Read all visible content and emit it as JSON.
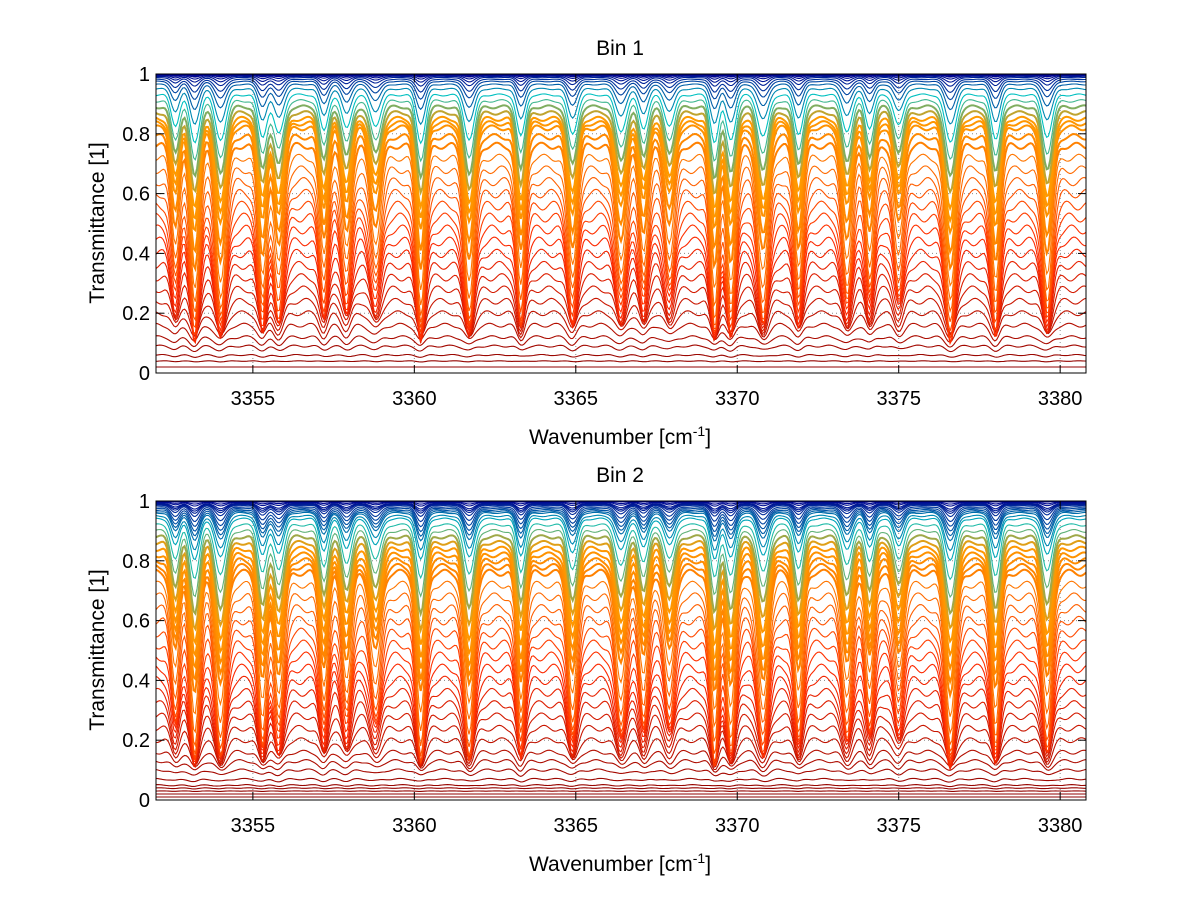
{
  "chart_data": [
    {
      "type": "line",
      "title": "Bin 1",
      "xlabel": "Wavenumber [cm",
      "xlabel_sup": "-1",
      "xlabel_end": "]",
      "ylabel": "Transmittance [1]",
      "xlim": [
        3352.0,
        3380.8
      ],
      "ylim": [
        0,
        1
      ],
      "xticks": [
        3355,
        3360,
        3365,
        3370,
        3375,
        3380
      ],
      "xtick_labels": [
        "3355",
        "3360",
        "3365",
        "3370",
        "3375",
        "3380"
      ],
      "yticks": [
        0,
        0.2,
        0.4,
        0.6,
        0.8,
        1
      ],
      "ytick_labels": [
        "0",
        "0.2",
        "0.4",
        "0.6",
        "0.8",
        "1"
      ],
      "grid": "dotted",
      "colormap": "jet",
      "series_count": 40,
      "line_baselines": [
        0.02,
        0.04,
        0.06,
        0.09,
        0.12,
        0.16,
        0.2,
        0.24,
        0.28,
        0.32,
        0.36,
        0.4,
        0.44,
        0.48,
        0.52,
        0.56,
        0.6,
        0.64,
        0.68,
        0.72,
        0.76,
        0.79,
        0.82,
        0.835,
        0.85,
        0.87,
        0.89,
        0.91,
        0.93,
        0.95,
        0.965,
        0.975,
        0.982,
        0.988,
        0.992,
        0.995,
        0.997,
        0.998,
        0.999,
        1.0
      ],
      "absorption_lines_cm-1": [
        3352.6,
        3353.2,
        3354.0,
        3355.3,
        3355.8,
        3357.2,
        3357.9,
        3358.8,
        3360.2,
        3361.7,
        3363.3,
        3364.9,
        3366.4,
        3367.1,
        3367.9,
        3369.3,
        3369.8,
        3370.8,
        3371.9,
        3373.4,
        3374.1,
        3375.0,
        3376.6,
        3378.0,
        3379.6
      ],
      "colors": {
        "low_transmittance": "#8b0000",
        "mid": "#ff2a00",
        "high": "#ff9a00",
        "near_one": "#00008f",
        "accent": "#00c0c0"
      }
    },
    {
      "type": "line",
      "title": "Bin 2",
      "xlabel": "Wavenumber [cm",
      "xlabel_sup": "-1",
      "xlabel_end": "]",
      "ylabel": "Transmittance [1]",
      "xlim": [
        3352.0,
        3380.8
      ],
      "ylim": [
        0,
        1
      ],
      "xticks": [
        3355,
        3360,
        3365,
        3370,
        3375,
        3380
      ],
      "xtick_labels": [
        "3355",
        "3360",
        "3365",
        "3370",
        "3375",
        "3380"
      ],
      "yticks": [
        0,
        0.2,
        0.4,
        0.6,
        0.8,
        1
      ],
      "ytick_labels": [
        "0",
        "0.2",
        "0.4",
        "0.6",
        "0.8",
        "1"
      ],
      "grid": "dotted",
      "colormap": "jet",
      "series_count": 46,
      "line_baselines": [
        0.01,
        0.02,
        0.03,
        0.04,
        0.05,
        0.07,
        0.1,
        0.13,
        0.16,
        0.2,
        0.24,
        0.28,
        0.32,
        0.36,
        0.4,
        0.44,
        0.48,
        0.52,
        0.56,
        0.6,
        0.64,
        0.68,
        0.72,
        0.76,
        0.78,
        0.8,
        0.82,
        0.84,
        0.86,
        0.88,
        0.9,
        0.92,
        0.94,
        0.95,
        0.96,
        0.965,
        0.97,
        0.975,
        0.98,
        0.985,
        0.988,
        0.99,
        0.992,
        0.995,
        0.997,
        0.999
      ],
      "absorption_lines_cm-1": [
        3352.6,
        3353.2,
        3354.0,
        3355.3,
        3355.8,
        3357.2,
        3357.9,
        3358.8,
        3360.2,
        3361.7,
        3363.3,
        3364.9,
        3366.4,
        3367.1,
        3367.9,
        3369.3,
        3369.8,
        3370.8,
        3371.9,
        3373.4,
        3374.1,
        3375.0,
        3376.6,
        3378.0,
        3379.6
      ],
      "colors": {
        "low_transmittance": "#8b0000",
        "mid": "#ff2a00",
        "high": "#ff9a00",
        "near_one": "#00008f",
        "accent": "#00c0c0"
      }
    }
  ]
}
